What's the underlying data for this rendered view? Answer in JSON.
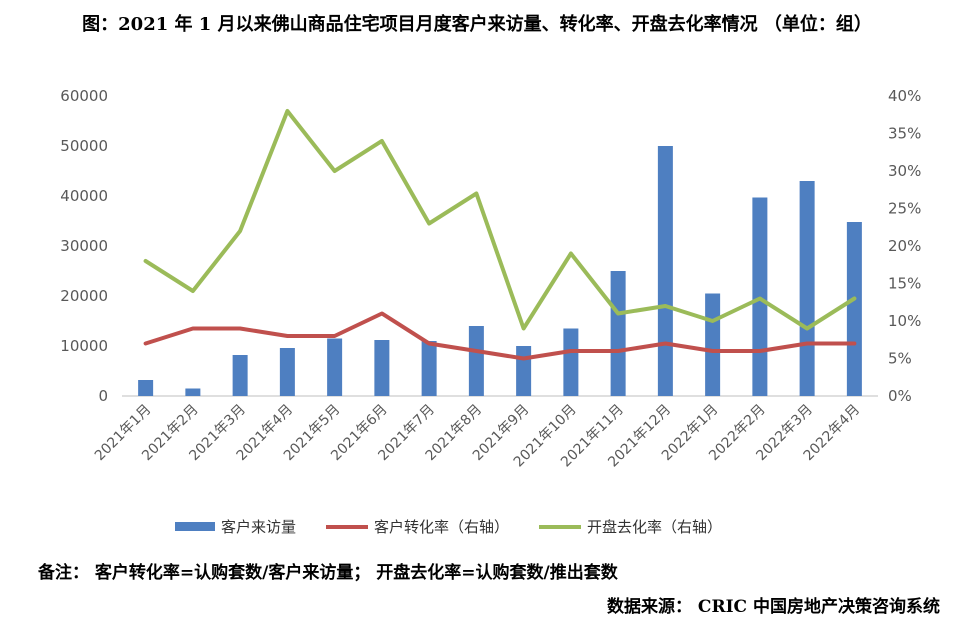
{
  "title": "图：2021 年 1 月以来佛山商品住宅项目月度客户来访量、转化率、开盘去化率情况 （单位：组）",
  "note": "备注：  客户转化率=认购套数/客户来访量；  开盘去化率=认购套数/推出套数",
  "source": "数据来源：  CRIC 中国房地产决策咨询系统",
  "colors": {
    "bar": "#4e7fc1",
    "conversion": "#c0504d",
    "clearance": "#9bbb59"
  },
  "chart_data": {
    "type": "bar",
    "categories": [
      "2021年1月",
      "2021年2月",
      "2021年3月",
      "2021年4月",
      "2021年5月",
      "2021年6月",
      "2021年7月",
      "2021年8月",
      "2021年9月",
      "2021年10月",
      "2021年11月",
      "2021年12月",
      "2022年1月",
      "2022年2月",
      "2022年3月",
      "2022年4月"
    ],
    "y_left": {
      "ticks": [
        "0",
        "10000",
        "20000",
        "30000",
        "40000",
        "50000",
        "60000"
      ],
      "min": 0,
      "max": 60000
    },
    "y_right": {
      "ticks": [
        "0%",
        "5%",
        "10%",
        "15%",
        "20%",
        "25%",
        "30%",
        "35%",
        "40%"
      ],
      "min": 0,
      "max": 0.4
    },
    "series": [
      {
        "name": "客户来访量",
        "type": "bar",
        "axis": "left",
        "values": [
          3200,
          1500,
          8200,
          9600,
          11500,
          11200,
          11000,
          14000,
          10000,
          13500,
          25000,
          50000,
          20500,
          39700,
          43000,
          34800
        ]
      },
      {
        "name": "客户转化率（右轴）",
        "type": "line",
        "axis": "right",
        "values": [
          0.07,
          0.09,
          0.09,
          0.08,
          0.08,
          0.11,
          0.07,
          0.06,
          0.05,
          0.06,
          0.06,
          0.07,
          0.06,
          0.06,
          0.07,
          0.07
        ]
      },
      {
        "name": "开盘去化率（右轴）",
        "type": "line",
        "axis": "right",
        "values": [
          0.18,
          0.14,
          0.22,
          0.38,
          0.3,
          0.34,
          0.23,
          0.27,
          0.09,
          0.19,
          0.11,
          0.12,
          0.1,
          0.13,
          0.09,
          0.13
        ]
      }
    ],
    "legend_position": "bottom",
    "grid": false
  }
}
